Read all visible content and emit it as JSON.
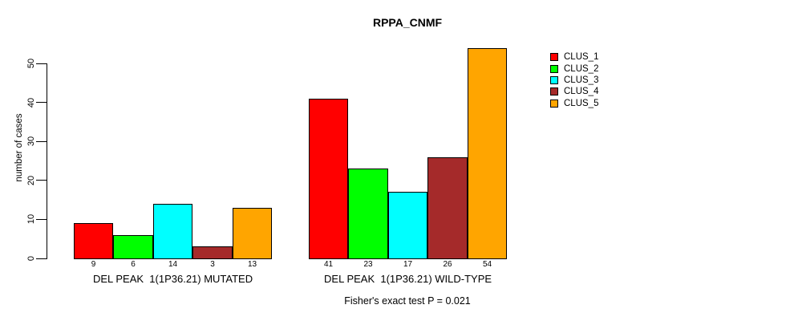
{
  "chart_data": {
    "type": "bar",
    "title": "RPPA_CNMF",
    "ylabel": "number of cases",
    "annotation": "Fisher's exact test P = 0.021",
    "categories": [
      "DEL PEAK  1(1P36.21) MUTATED",
      "DEL PEAK  1(1P36.21) WILD-TYPE"
    ],
    "series": [
      {
        "name": "CLUS_1",
        "color": "#FF0000",
        "values": [
          9,
          41
        ]
      },
      {
        "name": "CLUS_2",
        "color": "#00FF00",
        "values": [
          6,
          23
        ]
      },
      {
        "name": "CLUS_3",
        "color": "#00FFFF",
        "values": [
          14,
          17
        ]
      },
      {
        "name": "CLUS_4",
        "color": "#A52A2A",
        "values": [
          3,
          26
        ]
      },
      {
        "name": "CLUS_5",
        "color": "#FFA500",
        "values": [
          13,
          54
        ]
      }
    ],
    "yticks": [
      0,
      10,
      20,
      30,
      40,
      50
    ],
    "ylim": [
      0,
      56
    ],
    "grid": false,
    "legend_position": "right",
    "bar_value_labels_shown": true
  }
}
